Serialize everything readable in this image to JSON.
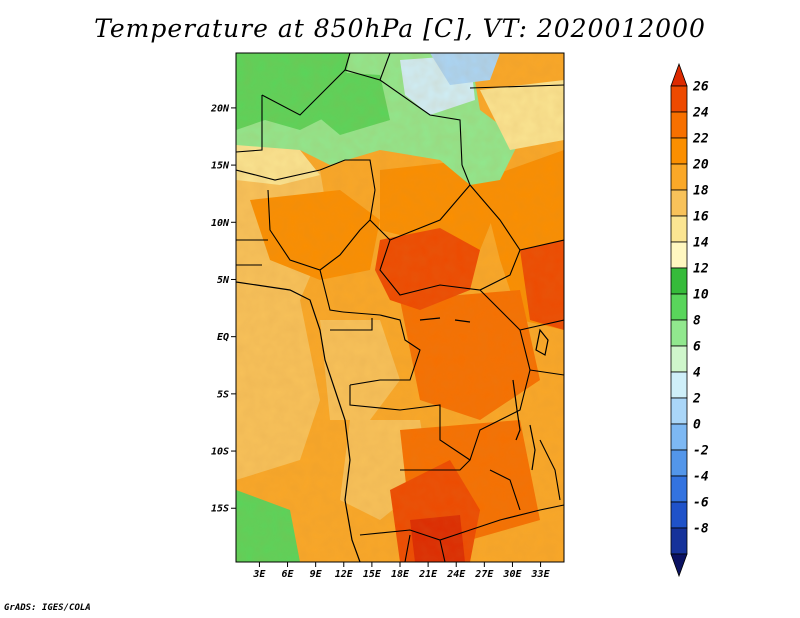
{
  "title": "Temperature at 850hPa [C], VT: 2020012000",
  "footer": "GrADS: IGES/COLA",
  "axes": {
    "lon_ticks": [
      "3E",
      "6E",
      "9E",
      "12E",
      "15E",
      "18E",
      "21E",
      "24E",
      "27E",
      "30E",
      "33E"
    ],
    "lon_values": [
      3,
      6,
      9,
      12,
      15,
      18,
      21,
      24,
      27,
      30,
      33
    ],
    "lat_ticks": [
      "20N",
      "15N",
      "10N",
      "5N",
      "EQ",
      "5S",
      "10S",
      "15S"
    ],
    "lat_values": [
      20,
      15,
      10,
      5,
      0,
      -5,
      -10,
      -15
    ],
    "lon_range": [
      0.5,
      35.5
    ],
    "lat_range": [
      -19.7,
      24.8
    ]
  },
  "colorbar": {
    "labels": [
      "26",
      "24",
      "22",
      "20",
      "18",
      "16",
      "14",
      "12",
      "10",
      "8",
      "6",
      "4",
      "2",
      "0",
      "-2",
      "-4",
      "-6",
      "-8"
    ],
    "colors": [
      "#dd2a00",
      "#ee4a00",
      "#f77000",
      "#fb8f00",
      "#faa828",
      "#f8c25a",
      "#fbe592",
      "#fff7c0",
      "#36bb3a",
      "#59d55b",
      "#91e88e",
      "#cff6cb",
      "#cfeff9",
      "#aad6f8",
      "#7db8f3",
      "#5396ea",
      "#3373e0",
      "#1f52c9",
      "#16329a",
      "#0b1262"
    ]
  },
  "colors": {
    "frame": "#000000",
    "border_lines": "#000000"
  }
}
